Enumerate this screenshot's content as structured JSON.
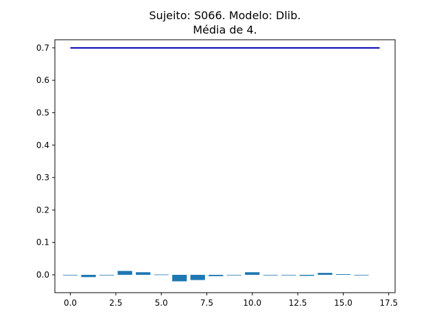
{
  "chart_data": {
    "type": "bar",
    "title": [
      "Sujeito: S066. Modelo: Dlib.",
      "Média de 4."
    ],
    "xlabel": "",
    "ylabel": "",
    "xlim": [
      -0.85,
      17.85
    ],
    "ylim": [
      -0.055,
      0.725
    ],
    "x_ticks": [
      0.0,
      2.5,
      5.0,
      7.5,
      10.0,
      12.5,
      15.0,
      17.5
    ],
    "x_tick_labels": [
      "0.0",
      "2.5",
      "5.0",
      "7.5",
      "10.0",
      "12.5",
      "15.0",
      "17.5"
    ],
    "y_ticks": [
      0.0,
      0.1,
      0.2,
      0.3,
      0.4,
      0.5,
      0.6,
      0.7
    ],
    "y_tick_labels": [
      "0.0",
      "0.1",
      "0.2",
      "0.3",
      "0.4",
      "0.5",
      "0.6",
      "0.7"
    ],
    "bar_color": "#1f77b4",
    "bars": {
      "x": [
        0,
        1,
        2,
        3,
        4,
        5,
        6,
        7,
        8,
        9,
        10,
        11,
        12,
        13,
        14,
        15,
        16
      ],
      "values": [
        -0.001,
        -0.007,
        -0.001,
        0.012,
        0.008,
        0.001,
        -0.02,
        -0.016,
        -0.004,
        -0.001,
        0.008,
        -0.001,
        -0.001,
        -0.003,
        0.006,
        0.002,
        -0.001
      ],
      "width": 0.8
    },
    "line": {
      "color": "#0000b3",
      "x": [
        0,
        17
      ],
      "y": [
        0.7,
        0.7
      ]
    },
    "grid": false,
    "legend": "none"
  }
}
